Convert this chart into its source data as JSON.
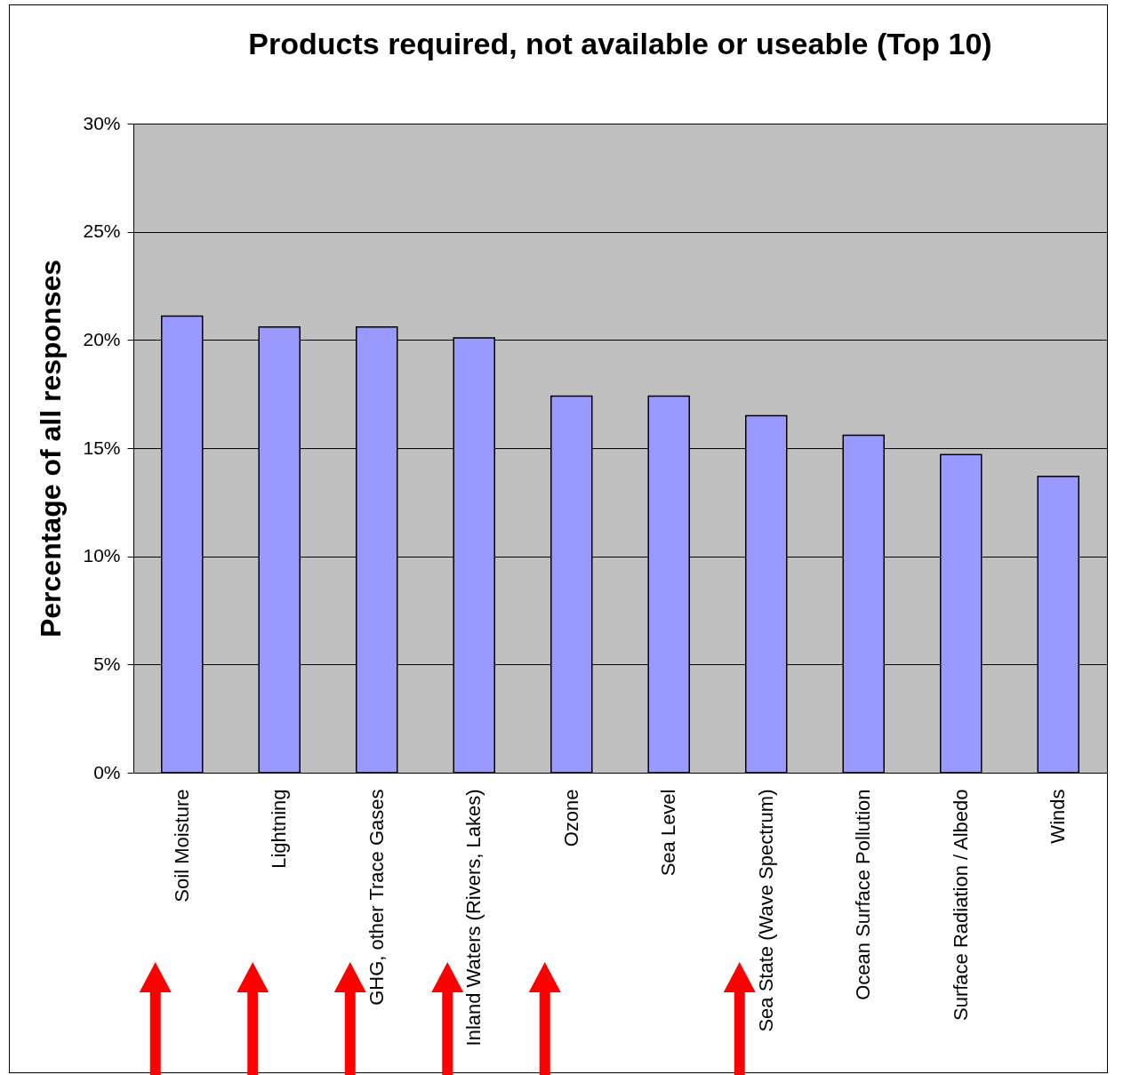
{
  "chart_data": {
    "type": "bar",
    "title": "Products required, not available or useable (Top 10)",
    "ylabel": "Percentage of all responses",
    "categories": [
      "Soil Moisture",
      "Lightning",
      "GHG, other Trace Gases",
      "Inland Waters (Rivers, Lakes)",
      "Ozone",
      "Sea Level",
      "Sea State (Wave Spectrum)",
      "Ocean Surface Pollution",
      "Surface Radiation / Albedo",
      "Winds"
    ],
    "values": [
      21.1,
      20.6,
      20.6,
      20.1,
      17.4,
      17.4,
      16.5,
      15.6,
      14.7,
      13.7
    ],
    "color": "#9999ff",
    "ylim": [
      0,
      30
    ],
    "yticks": [
      {
        "value": 0,
        "label": "0%"
      },
      {
        "value": 5,
        "label": "5%"
      },
      {
        "value": 10,
        "label": "10%"
      },
      {
        "value": 15,
        "label": "15%"
      },
      {
        "value": 20,
        "label": "20%"
      },
      {
        "value": 25,
        "label": "25%"
      },
      {
        "value": 30,
        "label": "30%"
      }
    ],
    "grid": "y"
  }
}
